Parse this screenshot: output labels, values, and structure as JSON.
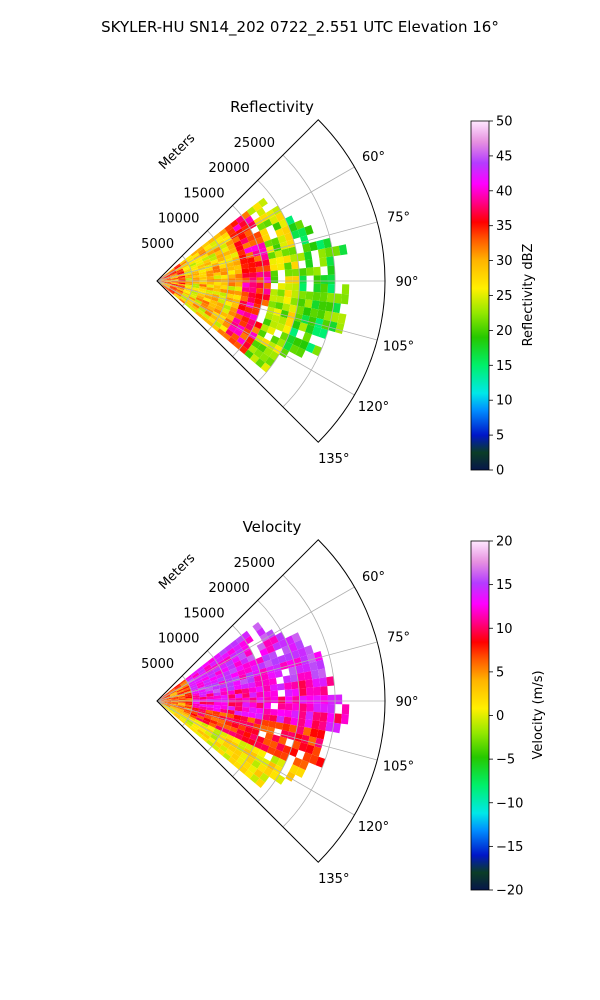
{
  "figure": {
    "suptitle": "SKYLER-HU  SN14_202  0722_2.551 UTC Elevation 16°"
  },
  "chart_data": [
    {
      "type": "heatmap",
      "projection": "polar-sector",
      "title": "Reflectivity",
      "range_label": "Meters",
      "range_ticks": [
        "5000",
        "10000",
        "15000",
        "20000",
        "25000"
      ],
      "range_values": [
        5000,
        10000,
        15000,
        20000,
        25000
      ],
      "range_max": 32000,
      "azimuth_ticks": [
        "60°",
        "75°",
        "90°",
        "105°",
        "120°",
        "135°"
      ],
      "azimuth_values": [
        60,
        75,
        90,
        105,
        120,
        135
      ],
      "azimuth_range": [
        45,
        135
      ],
      "grid": true,
      "colorbar": {
        "label": "Reflectivity dBZ",
        "vmin": 0,
        "vmax": 50,
        "ticks": [
          "0",
          "5",
          "10",
          "15",
          "20",
          "25",
          "30",
          "35",
          "40",
          "45",
          "50"
        ],
        "tick_values": [
          0,
          5,
          10,
          15,
          20,
          25,
          30,
          35,
          40,
          45,
          50
        ],
        "colormap": "HomeyerRainbow"
      },
      "field_summary": [
        {
          "range_m": [
            0,
            4000
          ],
          "value": 32
        },
        {
          "range_m": [
            4000,
            12000
          ],
          "value": 28
        },
        {
          "range_m": [
            12000,
            16000
          ],
          "value": 36
        },
        {
          "range_m": [
            16000,
            20000
          ],
          "value": 24
        },
        {
          "range_m": [
            20000,
            27000
          ],
          "value": 19
        }
      ],
      "data_extent_m": 27000
    },
    {
      "type": "heatmap",
      "projection": "polar-sector",
      "title": "Velocity",
      "range_label": "Meters",
      "range_ticks": [
        "5000",
        "10000",
        "15000",
        "20000",
        "25000"
      ],
      "range_values": [
        5000,
        10000,
        15000,
        20000,
        25000
      ],
      "range_max": 32000,
      "azimuth_ticks": [
        "60°",
        "75°",
        "90°",
        "105°",
        "120°",
        "135°"
      ],
      "azimuth_values": [
        60,
        75,
        90,
        105,
        120,
        135
      ],
      "azimuth_range": [
        45,
        135
      ],
      "grid": true,
      "colorbar": {
        "label": "Velocity (m/s)",
        "vmin": -20,
        "vmax": 20,
        "ticks": [
          "−20",
          "−15",
          "−10",
          "−5",
          "0",
          "5",
          "10",
          "15",
          "20"
        ],
        "tick_values": [
          -20,
          -15,
          -10,
          -5,
          0,
          5,
          10,
          15,
          20
        ],
        "colormap": "HomeyerRainbow"
      },
      "field_summary": [
        {
          "azimuth_deg": [
            50,
            80
          ],
          "value": 14
        },
        {
          "azimuth_deg": [
            80,
            100
          ],
          "value": 12
        },
        {
          "azimuth_deg": [
            100,
            115
          ],
          "value": 8
        },
        {
          "azimuth_deg": [
            115,
            130
          ],
          "value": 1
        }
      ],
      "data_extent_m": 27000
    }
  ]
}
